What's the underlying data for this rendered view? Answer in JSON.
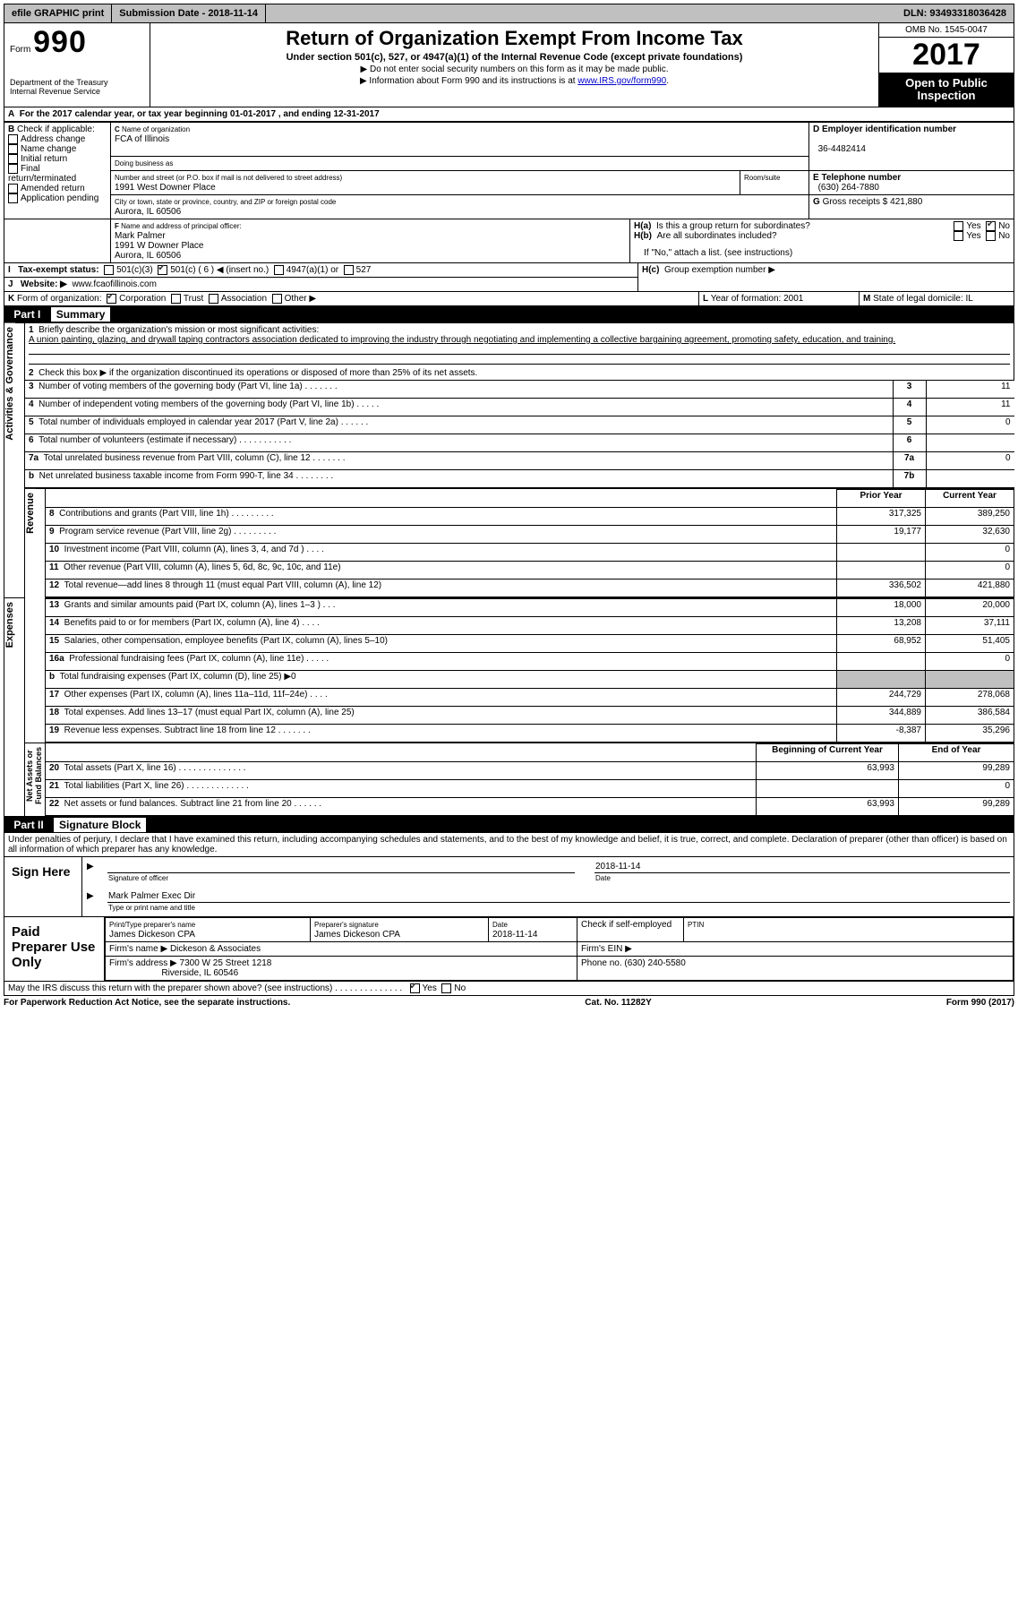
{
  "topbar": {
    "efile": "efile GRAPHIC print",
    "submission": "Submission Date - 2018-11-14",
    "dln": "DLN: 93493318036428"
  },
  "header": {
    "form_prefix": "Form",
    "form_number": "990",
    "dept1": "Department of the Treasury",
    "dept2": "Internal Revenue Service",
    "title": "Return of Organization Exempt From Income Tax",
    "subtitle": "Under section 501(c), 527, or 4947(a)(1) of the Internal Revenue Code (except private foundations)",
    "note1": "Do not enter social security numbers on this form as it may be made public.",
    "note2": "Information about Form 990 and its instructions is at ",
    "note2_link": "www.IRS.gov/form990",
    "omb": "OMB No. 1545-0047",
    "year": "2017",
    "open1": "Open to Public",
    "open2": "Inspection"
  },
  "secA": {
    "line": "For the 2017 calendar year, or tax year beginning 01-01-2017   , and ending 12-31-2017"
  },
  "boxB": {
    "label": "Check if applicable:",
    "items": [
      "Address change",
      "Name change",
      "Initial return",
      "Final return/terminated",
      "Amended return",
      "Application pending"
    ]
  },
  "boxC": {
    "namelabel": "Name of organization",
    "name": "FCA of Illinois",
    "dba_label": "Doing business as",
    "dba": "",
    "street_label": "Number and street (or P.O. box if mail is not delivered to street address)",
    "room_label": "Room/suite",
    "street": "1991 West Downer Place",
    "city_label": "City or town, state or province, country, and ZIP or foreign postal code",
    "city": "Aurora, IL  60506"
  },
  "boxD": {
    "label": "Employer identification number",
    "value": "36-4482414"
  },
  "boxE": {
    "label": "Telephone number",
    "value": "(630) 264-7880"
  },
  "boxG": {
    "label": "Gross receipts $",
    "value": "421,880"
  },
  "boxF": {
    "label": "Name and address of principal officer:",
    "l1": "Mark Palmer",
    "l2": "1991 W Downer Place",
    "l3": "Aurora, IL  60506"
  },
  "boxH": {
    "a": "Is this a group return for subordinates?",
    "b": "Are all subordinates included?",
    "ifno": "If \"No,\" attach a list. (see instructions)",
    "c": "Group exemption number ▶",
    "yes": "Yes",
    "no": "No"
  },
  "lineI": {
    "label": "Tax-exempt status:",
    "o1": "501(c)(3)",
    "o2": "501(c) (  6  ) ◀ (insert no.)",
    "o3": "4947(a)(1) or",
    "o4": "527"
  },
  "lineJ": {
    "label": "Website: ▶",
    "value": "www.fcaofillinois.com"
  },
  "lineK": {
    "label": "Form of organization:",
    "o1": "Corporation",
    "o2": "Trust",
    "o3": "Association",
    "o4": "Other ▶"
  },
  "lineL": {
    "label": "Year of formation:",
    "value": "2001"
  },
  "lineM": {
    "label": "State of legal domicile:",
    "value": "IL"
  },
  "part1": {
    "header": "Part I",
    "title": "Summary",
    "q1": "Briefly describe the organization's mission or most significant activities:",
    "q1_text": "A union painting, glazing, and drywall taping contractors association dedicated to improving the industry through negotiating and implementing a collective bargaining agreement, promoting safety, education, and training.",
    "q2": "Check this box ▶        if the organization discontinued its operations or disposed of more than 25% of its net assets.",
    "side_activities": "Activities & Governance",
    "side_rev": "Revenue",
    "side_exp": "Expenses",
    "side_net": "Net Assets or\nFund Balances",
    "col_prior": "Prior Year",
    "col_curr": "Current Year",
    "col_begin": "Beginning of Current Year",
    "col_end": "End of Year",
    "rows_gov": [
      {
        "n": "3",
        "t": "Number of voting members of the governing body (Part VI, line 1a)  .  .  .  .  .  .  .",
        "b": "3",
        "v": "11"
      },
      {
        "n": "4",
        "t": "Number of independent voting members of the governing body (Part VI, line 1b)  .  .  .  .  .",
        "b": "4",
        "v": "11"
      },
      {
        "n": "5",
        "t": "Total number of individuals employed in calendar year 2017 (Part V, line 2a)  .  .  .  .  .  .",
        "b": "5",
        "v": "0"
      },
      {
        "n": "6",
        "t": "Total number of volunteers (estimate if necessary)  .  .  .  .  .  .  .  .  .  .  .",
        "b": "6",
        "v": ""
      },
      {
        "n": "7a",
        "t": "Total unrelated business revenue from Part VIII, column (C), line 12  .  .  .  .  .  .  .",
        "b": "7a",
        "v": "0"
      },
      {
        "n": "b",
        "t": "Net unrelated business taxable income from Form 990-T, line 34  .  .  .  .  .  .  .  .",
        "b": "7b",
        "v": ""
      }
    ],
    "rows_rev": [
      {
        "n": "8",
        "t": "Contributions and grants (Part VIII, line 1h)  .  .  .  .  .  .  .  .  .",
        "p": "317,325",
        "c": "389,250"
      },
      {
        "n": "9",
        "t": "Program service revenue (Part VIII, line 2g)  .  .  .  .  .  .  .  .  .",
        "p": "19,177",
        "c": "32,630"
      },
      {
        "n": "10",
        "t": "Investment income (Part VIII, column (A), lines 3, 4, and 7d )  .  .  .  .",
        "p": "",
        "c": "0"
      },
      {
        "n": "11",
        "t": "Other revenue (Part VIII, column (A), lines 5, 6d, 8c, 9c, 10c, and 11e)",
        "p": "",
        "c": "0"
      },
      {
        "n": "12",
        "t": "Total revenue—add lines 8 through 11 (must equal Part VIII, column (A), line 12)",
        "p": "336,502",
        "c": "421,880"
      }
    ],
    "rows_exp": [
      {
        "n": "13",
        "t": "Grants and similar amounts paid (Part IX, column (A), lines 1–3 )  .  .  .",
        "p": "18,000",
        "c": "20,000"
      },
      {
        "n": "14",
        "t": "Benefits paid to or for members (Part IX, column (A), line 4)  .  .  .  .",
        "p": "13,208",
        "c": "37,111"
      },
      {
        "n": "15",
        "t": "Salaries, other compensation, employee benefits (Part IX, column (A), lines 5–10)",
        "p": "68,952",
        "c": "51,405"
      },
      {
        "n": "16a",
        "t": "Professional fundraising fees (Part IX, column (A), line 11e)  .  .  .  .  .",
        "p": "",
        "c": "0"
      },
      {
        "n": "b",
        "t": "Total fundraising expenses (Part IX, column (D), line 25) ▶0",
        "p": "__shade__",
        "c": "__shade__"
      },
      {
        "n": "17",
        "t": "Other expenses (Part IX, column (A), lines 11a–11d, 11f–24e)  .  .  .  .",
        "p": "244,729",
        "c": "278,068"
      },
      {
        "n": "18",
        "t": "Total expenses. Add lines 13–17 (must equal Part IX, column (A), line 25)",
        "p": "344,889",
        "c": "386,584"
      },
      {
        "n": "19",
        "t": "Revenue less expenses. Subtract line 18 from line 12  .  .  .  .  .  .  .",
        "p": "-8,387",
        "c": "35,296"
      }
    ],
    "rows_net": [
      {
        "n": "20",
        "t": "Total assets (Part X, line 16)  .  .  .  .  .  .  .  .  .  .  .  .  .  .",
        "p": "63,993",
        "c": "99,289"
      },
      {
        "n": "21",
        "t": "Total liabilities (Part X, line 26)  .  .  .  .  .  .  .  .  .  .  .  .  .",
        "p": "",
        "c": "0"
      },
      {
        "n": "22",
        "t": "Net assets or fund balances. Subtract line 21 from line 20  .  .  .  .  .  .",
        "p": "63,993",
        "c": "99,289"
      }
    ]
  },
  "part2": {
    "header": "Part II",
    "title": "Signature Block",
    "decl": "Under penalties of perjury, I declare that I have examined this return, including accompanying schedules and statements, and to the best of my knowledge and belief, it is true, correct, and complete. Declaration of preparer (other than officer) is based on all information of which preparer has any knowledge.",
    "sign_here": "Sign Here",
    "sig_officer": "Signature of officer",
    "date": "Date",
    "date_val": "2018-11-14",
    "type_name": "Type or print name and title",
    "type_name_val": "Mark Palmer Exec Dir",
    "paid": "Paid Preparer Use Only",
    "prep_name_label": "Print/Type preparer's name",
    "prep_name": "James Dickeson CPA",
    "prep_sig_label": "Preparer's signature",
    "prep_sig": "James Dickeson CPA",
    "prep_date_label": "Date",
    "prep_date": "2018-11-14",
    "check_label": "Check        if self-employed",
    "ptin_label": "PTIN",
    "firm_name_label": "Firm's name     ▶",
    "firm_name": "Dickeson & Associates",
    "firm_ein_label": "Firm's EIN ▶",
    "firm_ein": "",
    "firm_addr_label": "Firm's address ▶",
    "firm_addr1": "7300 W 25 Street 1218",
    "firm_addr2": "Riverside, IL  60546",
    "phone_label": "Phone no.",
    "phone": "(630) 240-5580",
    "discuss": "May the IRS discuss this return with the preparer shown above? (see instructions)  .  .  .  .  .  .  .  .  .  .  .  .  .  .",
    "yes": "Yes",
    "no": "No"
  },
  "footer": {
    "paperwork": "For Paperwork Reduction Act Notice, see the separate instructions.",
    "cat": "Cat. No. 11282Y",
    "form": "Form 990 (2017)"
  }
}
